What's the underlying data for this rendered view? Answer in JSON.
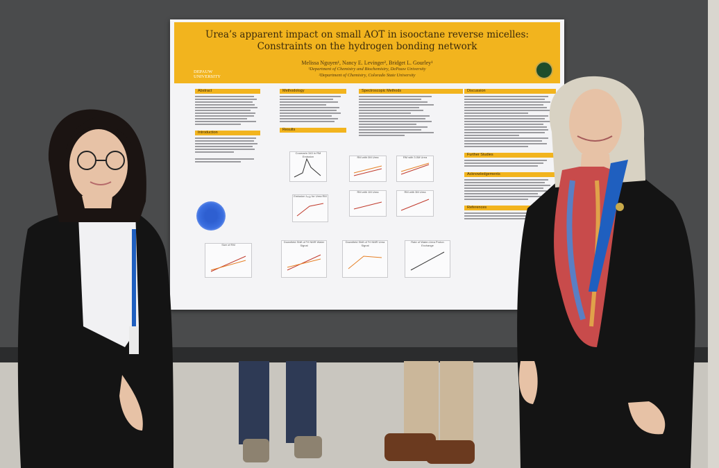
{
  "poster": {
    "title_line1": "Urea’s apparent impact on small AOT in isooctane reverse micelles:",
    "title_line2": "Constraints on the hydrogen bonding network",
    "authors": "Melissa Nguyen¹, Nancy E. Levinger², Bridget L. Gourley¹",
    "affiliation1": "¹Department of Chemistry and Biochemistry, DePauw University",
    "affiliation2": "²Department of Chemistry, Colorado State University",
    "logo_left": "DEPAUW UNIVERSITY",
    "sections": {
      "abstract": "Abstract",
      "introduction": "Introduction",
      "methodology": "Methodology",
      "results": "Results",
      "spectroscopic_methods": "Spectroscopic Methods",
      "discussion": "Discussion",
      "further_studies": "Further Studies",
      "acknowledgements": "Acknowledgements",
      "references": "References"
    },
    "plots": {
      "p1": "Coumarin 343 in RM Emission",
      "p2": "RM with 0M Urea",
      "p3": "RM with 3.0M Urea",
      "p4": "RM with 1M Urea",
      "p5": "RM with 3M Urea",
      "p6": "Emission λₘₐₓ for Urea RM",
      "p7": "Size of RM",
      "p8": "Downfield Shift of ¹H NMR Water Signal",
      "p9": "Downfield Shift of ¹H NMR Urea Signal",
      "p10": "Rate of Water-Urea Proton Exchange"
    }
  },
  "colors": {
    "banner": "#f2b41e",
    "wall": "#4a4b4c",
    "floor": "#c9c6bf",
    "jacket": "#141414",
    "lanyard": "#1f5fbf"
  }
}
